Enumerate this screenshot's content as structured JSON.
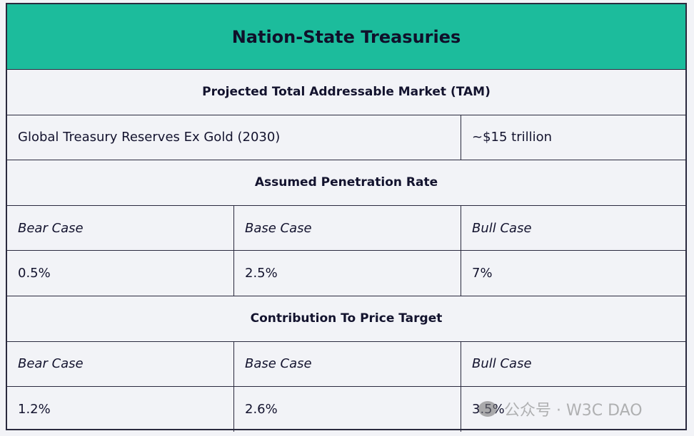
{
  "title": "Nation-State Treasuries",
  "sections": {
    "tam": "Projected Total Addressable Market (TAM)",
    "penetration": "Assumed Penetration Rate",
    "contribution": "Contribution To Price Target"
  },
  "tam_row": {
    "label": "Global Treasury Reserves Ex Gold (2030)",
    "value": "~$15 trillion"
  },
  "cases": [
    "Bear Case",
    "Base Case",
    "Bull Case"
  ],
  "penetration_values": [
    "0.5%",
    "2.5%",
    "7%"
  ],
  "contribution_values": [
    "1.2%",
    "2.6%",
    "3.5%"
  ],
  "watermark": "公众号 · W3C DAO",
  "colors": {
    "header": "#1cbc9c",
    "background": "#f2f3f7",
    "text": "#13132e"
  }
}
